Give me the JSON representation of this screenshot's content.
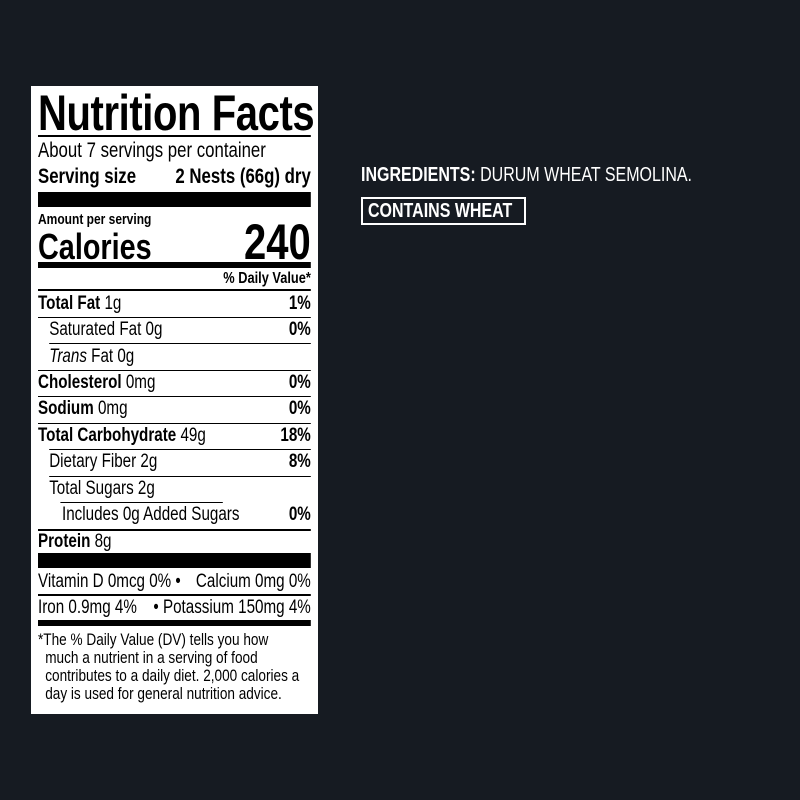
{
  "label": {
    "title": "Nutrition Facts",
    "servings": "About 7 servings per container",
    "serving_size_label": "Serving size",
    "serving_size_value": "2 Nests (66g) dry",
    "amount_per_serving": "Amount per serving",
    "calories_label": "Calories",
    "calories_value": "240",
    "daily_value_header": "% Daily Value*",
    "nutrients": [
      {
        "name": "Total Fat",
        "amount": "1g",
        "dv": "1%"
      },
      {
        "name": "Saturated Fat",
        "amount": "0g",
        "dv": "0%"
      },
      {
        "name": "Trans",
        "name_suffix": "Fat",
        "amount": "0g",
        "dv": ""
      },
      {
        "name": "Cholesterol",
        "amount": "0mg",
        "dv": "0%"
      },
      {
        "name": "Sodium",
        "amount": "0mg",
        "dv": "0%"
      },
      {
        "name": "Total Carbohydrate",
        "amount": "49g",
        "dv": "18%"
      },
      {
        "name": "Dietary Fiber",
        "amount": "2g",
        "dv": "8%"
      },
      {
        "name": "Total Sugars",
        "amount": "2g",
        "dv": ""
      },
      {
        "name": "Includes 0g Added Sugars",
        "amount": "",
        "dv": "0%"
      },
      {
        "name": "Protein",
        "amount": "8g",
        "dv": ""
      }
    ],
    "micros": {
      "vitamin_d": "Vitamin D 0mcg 0%",
      "calcium": "Calcium 0mg 0%",
      "iron": "Iron 0.9mg 4%",
      "potassium": "Potassium 150mg 4%",
      "bullet": "•"
    },
    "footnote": [
      "*The % Daily Value (DV) tells you how",
      "much a nutrient in a serving of food",
      "contributes to a daily diet. 2,000 calories a",
      "day is used for general nutrition advice."
    ]
  },
  "ingredients": {
    "label": "INGREDIENTS:",
    "text": "DURUM WHEAT SEMOLINA."
  },
  "allergen": "CONTAINS WHEAT",
  "colors": {
    "background": "#161b22",
    "label_bg": "#ffffff",
    "text": "#000000"
  }
}
